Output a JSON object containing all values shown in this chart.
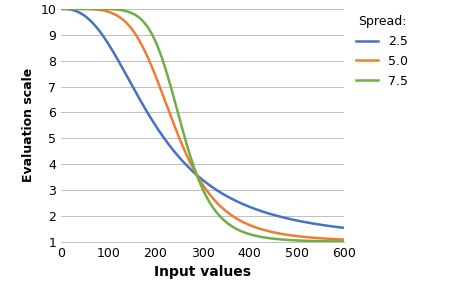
{
  "title": "",
  "xlabel": "Input values",
  "ylabel": "Evaluation scale",
  "xlim": [
    0,
    600
  ],
  "ylim": [
    1,
    10
  ],
  "xticks": [
    0,
    100,
    200,
    300,
    400,
    500,
    600
  ],
  "yticks": [
    1,
    2,
    3,
    4,
    5,
    6,
    7,
    8,
    9,
    10
  ],
  "legend_title": "Spread:",
  "series": [
    {
      "spread": 2.5,
      "midpoint": 250,
      "color": "#4472c4",
      "label": "2.5"
    },
    {
      "spread": 5.0,
      "midpoint": 250,
      "color": "#ed7d31",
      "label": "5.0"
    },
    {
      "spread": 7.5,
      "midpoint": 250,
      "color": "#70ad47",
      "label": "7.5"
    }
  ],
  "background_color": "#ffffff",
  "grid_color": "#bfbfbf",
  "line_width": 1.8,
  "xlabel_fontsize": 10,
  "ylabel_fontsize": 9,
  "tick_fontsize": 9,
  "legend_fontsize": 9,
  "legend_title_fontsize": 9
}
